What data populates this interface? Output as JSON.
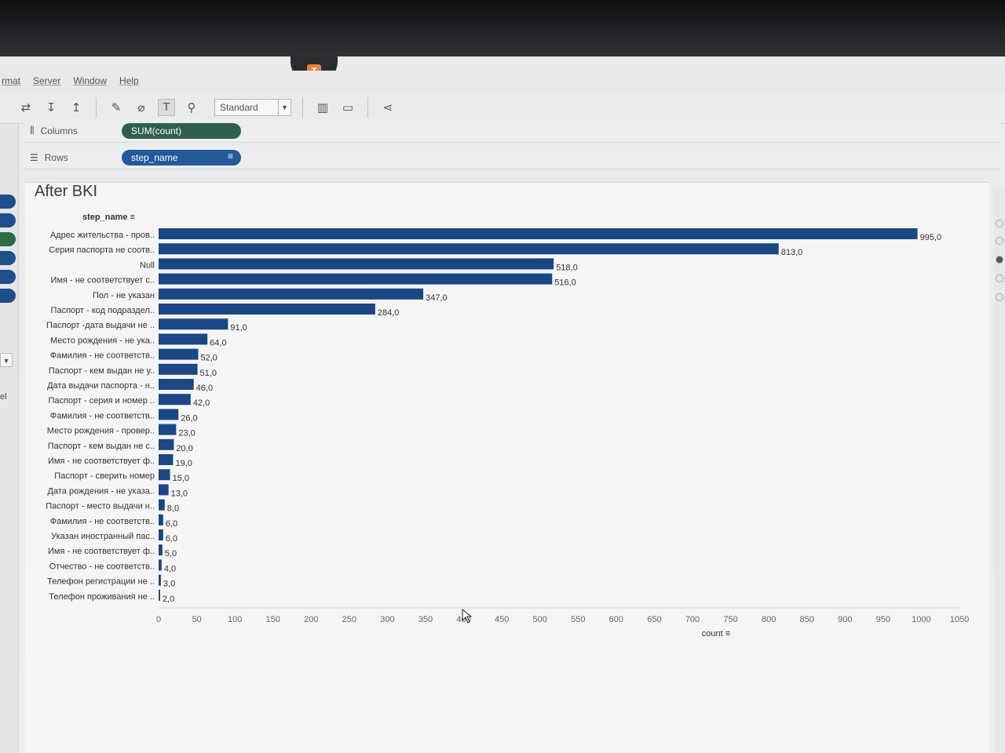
{
  "menu": [
    "rmat",
    "Server",
    "Window",
    "Help"
  ],
  "toolbar": {
    "fit_select": "Standard"
  },
  "shelves": {
    "columns_label": "Columns",
    "columns_pill": "SUM(count)",
    "rows_label": "Rows",
    "rows_pill": "step_name"
  },
  "sheet": {
    "title": "After BKI",
    "row_header": "step_name",
    "axis_label": "count",
    "side_label": "el"
  },
  "colors": {
    "bar": "#1c4785",
    "columns_pill": "#2f5f4e",
    "rows_pill": "#235a9a"
  },
  "chart_data": {
    "type": "bar",
    "orientation": "horizontal",
    "categories": [
      "Адрес жительства - пров..",
      "Серия паспорта не соотв..",
      "Null",
      "Имя - не соответствует с..",
      "Пол - не указан",
      "Паспорт - код подраздел..",
      "Паспорт -дата выдачи не ..",
      "Место рождения - не ука..",
      "Фамилия - не соответств..",
      "Паспорт - кем выдан не у..",
      "Дата выдачи паспорта - н..",
      "Паспорт - серия и номер ..",
      "Фамилия - не соответств..",
      "Место рождения - провер..",
      "Паспорт - кем выдан не с..",
      "Имя - не соответствует ф..",
      "Паспорт - сверить номер",
      "Дата рождения - не указа..",
      "Паспорт - место выдачи н..",
      "Фамилия - не соответств..",
      "Указан иностранный пас..",
      "Имя - не соответствует ф..",
      "Отчество - не соответств..",
      "Телефон регистрации не ..",
      "Телефон проживания не .."
    ],
    "values": [
      995,
      813,
      518,
      516,
      347,
      284,
      91,
      64,
      52,
      51,
      46,
      42,
      26,
      23,
      20,
      19,
      15,
      13,
      8,
      6,
      6,
      5,
      4,
      3,
      2
    ],
    "value_labels": [
      "995,0",
      "813,0",
      "518,0",
      "516,0",
      "347,0",
      "284,0",
      "91,0",
      "64,0",
      "52,0",
      "51,0",
      "46,0",
      "42,0",
      "26,0",
      "23,0",
      "20,0",
      "19,0",
      "15,0",
      "13,0",
      "8,0",
      "6,0",
      "6,0",
      "5,0",
      "4,0",
      "3,0",
      "2,0"
    ],
    "xticks": [
      0,
      50,
      100,
      150,
      200,
      250,
      300,
      350,
      400,
      450,
      500,
      550,
      600,
      650,
      700,
      750,
      800,
      850,
      900,
      950,
      1000,
      1050
    ],
    "xlim": [
      0,
      1050
    ],
    "xlabel": "count",
    "ylabel": "step_name",
    "title": "After BKI",
    "grid": false
  }
}
